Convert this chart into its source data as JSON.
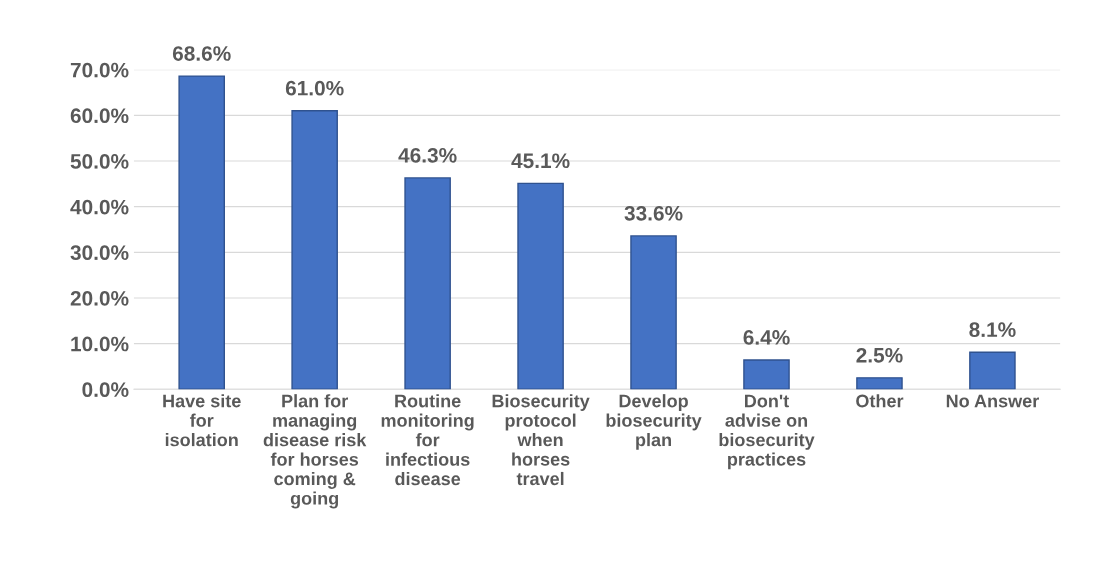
{
  "chart_data": {
    "type": "bar",
    "categories": [
      "Have site\nfor\nisolation",
      "Plan for\nmanaging\ndisease risk\nfor horses\ncoming &\ngoing",
      "Routine\nmonitoring\nfor\ninfectious\ndisease",
      "Biosecurity\nprotocol\nwhen\nhorses\ntravel",
      "Develop\nbiosecurity\nplan",
      "Don't\nadvise on\nbiosecurity\npractices",
      "Other",
      "No Answer"
    ],
    "values": [
      68.6,
      61.0,
      46.3,
      45.1,
      33.6,
      6.4,
      2.5,
      8.1
    ],
    "value_labels": [
      "68.6%",
      "61.0%",
      "46.3%",
      "45.1%",
      "33.6%",
      "6.4%",
      "2.5%",
      "8.1%"
    ],
    "color": "#4472c4",
    "ylim": [
      0,
      70
    ],
    "yticks": [
      {
        "value": 0,
        "label": "0.0%"
      },
      {
        "value": 10,
        "label": "10.0%"
      },
      {
        "value": 20,
        "label": "20.0%"
      },
      {
        "value": 30,
        "label": "30.0%"
      },
      {
        "value": 40,
        "label": "40.0%"
      },
      {
        "value": 50,
        "label": "50.0%"
      },
      {
        "value": 60,
        "label": "60.0%"
      },
      {
        "value": 70,
        "label": "70.0%"
      }
    ],
    "grid": "y"
  }
}
